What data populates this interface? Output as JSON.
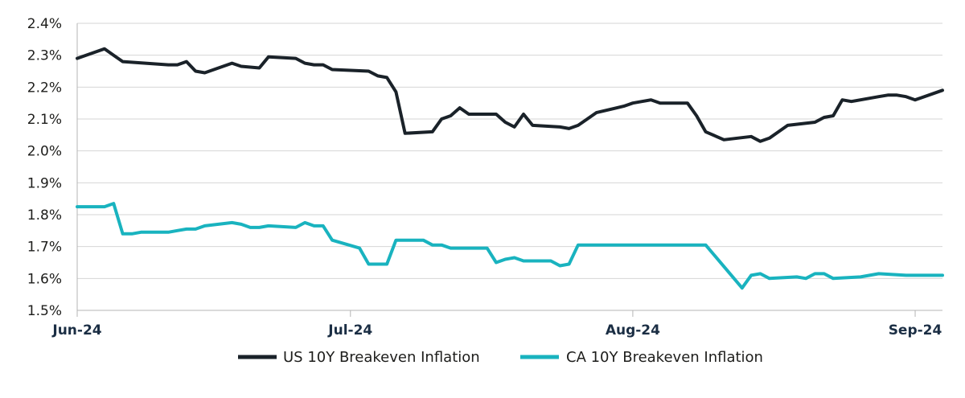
{
  "chart_data": {
    "type": "line",
    "title": "",
    "xlabel": "",
    "ylabel": "",
    "ylim": [
      1.5,
      2.4
    ],
    "yticks": [
      "2.4%",
      "2.3%",
      "2.2%",
      "2.1%",
      "2.0%",
      "1.9%",
      "1.8%",
      "1.7%",
      "1.6%",
      "1.5%"
    ],
    "ytick_values": [
      2.4,
      2.3,
      2.2,
      2.1,
      2.0,
      1.9,
      1.8,
      1.7,
      1.6,
      1.5
    ],
    "xticks": [
      "Jun-24",
      "Jul-24",
      "Aug-24",
      "Sep-24"
    ],
    "xtick_values": [
      "2024-06-01",
      "2024-07-01",
      "2024-08-01",
      "2024-09-01"
    ],
    "xlim": [
      "2024-06-01",
      "2024-09-04"
    ],
    "grid": true,
    "legend_position": "bottom",
    "series": [
      {
        "name": "US 10Y Breakeven Inflation",
        "color": "#1a2229",
        "points": [
          [
            "2024-06-01",
            2.29
          ],
          [
            "2024-06-04",
            2.32
          ],
          [
            "2024-06-05",
            2.3
          ],
          [
            "2024-06-06",
            2.28
          ],
          [
            "2024-06-11",
            2.27
          ],
          [
            "2024-06-12",
            2.27
          ],
          [
            "2024-06-13",
            2.28
          ],
          [
            "2024-06-14",
            2.25
          ],
          [
            "2024-06-15",
            2.245
          ],
          [
            "2024-06-18",
            2.275
          ],
          [
            "2024-06-19",
            2.265
          ],
          [
            "2024-06-21",
            2.26
          ],
          [
            "2024-06-22",
            2.295
          ],
          [
            "2024-06-25",
            2.29
          ],
          [
            "2024-06-26",
            2.275
          ],
          [
            "2024-06-27",
            2.27
          ],
          [
            "2024-06-28",
            2.27
          ],
          [
            "2024-06-29",
            2.255
          ],
          [
            "2024-07-03",
            2.25
          ],
          [
            "2024-07-04",
            2.235
          ],
          [
            "2024-07-05",
            2.23
          ],
          [
            "2024-07-06",
            2.185
          ],
          [
            "2024-07-07",
            2.055
          ],
          [
            "2024-07-10",
            2.06
          ],
          [
            "2024-07-11",
            2.1
          ],
          [
            "2024-07-12",
            2.11
          ],
          [
            "2024-07-13",
            2.135
          ],
          [
            "2024-07-14",
            2.115
          ],
          [
            "2024-07-17",
            2.115
          ],
          [
            "2024-07-18",
            2.09
          ],
          [
            "2024-07-19",
            2.075
          ],
          [
            "2024-07-20",
            2.115
          ],
          [
            "2024-07-21",
            2.08
          ],
          [
            "2024-07-24",
            2.075
          ],
          [
            "2024-07-25",
            2.07
          ],
          [
            "2024-07-26",
            2.08
          ],
          [
            "2024-07-27",
            2.1
          ],
          [
            "2024-07-28",
            2.12
          ],
          [
            "2024-07-31",
            2.14
          ],
          [
            "2024-08-01",
            2.15
          ],
          [
            "2024-08-02",
            2.155
          ],
          [
            "2024-08-03",
            2.16
          ],
          [
            "2024-08-04",
            2.15
          ],
          [
            "2024-08-07",
            2.15
          ],
          [
            "2024-08-08",
            2.11
          ],
          [
            "2024-08-09",
            2.06
          ],
          [
            "2024-08-11",
            2.035
          ],
          [
            "2024-08-14",
            2.045
          ],
          [
            "2024-08-15",
            2.03
          ],
          [
            "2024-08-16",
            2.04
          ],
          [
            "2024-08-17",
            2.06
          ],
          [
            "2024-08-18",
            2.08
          ],
          [
            "2024-08-21",
            2.09
          ],
          [
            "2024-08-22",
            2.105
          ],
          [
            "2024-08-23",
            2.11
          ],
          [
            "2024-08-24",
            2.16
          ],
          [
            "2024-08-25",
            2.155
          ],
          [
            "2024-08-28",
            2.17
          ],
          [
            "2024-08-29",
            2.175
          ],
          [
            "2024-08-30",
            2.175
          ],
          [
            "2024-08-31",
            2.17
          ],
          [
            "2024-09-01",
            2.16
          ],
          [
            "2024-09-04",
            2.19
          ]
        ]
      },
      {
        "name": "CA 10Y Breakeven Inflation",
        "color": "#19b3bf",
        "points": [
          [
            "2024-06-01",
            1.825
          ],
          [
            "2024-06-04",
            1.825
          ],
          [
            "2024-06-05",
            1.835
          ],
          [
            "2024-06-06",
            1.74
          ],
          [
            "2024-06-07",
            1.74
          ],
          [
            "2024-06-08",
            1.745
          ],
          [
            "2024-06-11",
            1.745
          ],
          [
            "2024-06-12",
            1.75
          ],
          [
            "2024-06-13",
            1.755
          ],
          [
            "2024-06-14",
            1.755
          ],
          [
            "2024-06-15",
            1.765
          ],
          [
            "2024-06-18",
            1.775
          ],
          [
            "2024-06-19",
            1.77
          ],
          [
            "2024-06-20",
            1.76
          ],
          [
            "2024-06-21",
            1.76
          ],
          [
            "2024-06-22",
            1.765
          ],
          [
            "2024-06-25",
            1.76
          ],
          [
            "2024-06-26",
            1.775
          ],
          [
            "2024-06-27",
            1.765
          ],
          [
            "2024-06-28",
            1.765
          ],
          [
            "2024-06-29",
            1.72
          ],
          [
            "2024-07-02",
            1.695
          ],
          [
            "2024-07-03",
            1.645
          ],
          [
            "2024-07-05",
            1.645
          ],
          [
            "2024-07-06",
            1.72
          ],
          [
            "2024-07-09",
            1.72
          ],
          [
            "2024-07-10",
            1.705
          ],
          [
            "2024-07-11",
            1.705
          ],
          [
            "2024-07-12",
            1.695
          ],
          [
            "2024-07-16",
            1.695
          ],
          [
            "2024-07-17",
            1.65
          ],
          [
            "2024-07-18",
            1.66
          ],
          [
            "2024-07-19",
            1.665
          ],
          [
            "2024-07-20",
            1.655
          ],
          [
            "2024-07-23",
            1.655
          ],
          [
            "2024-07-24",
            1.64
          ],
          [
            "2024-07-25",
            1.645
          ],
          [
            "2024-07-26",
            1.705
          ],
          [
            "2024-08-09",
            1.705
          ],
          [
            "2024-08-13",
            1.57
          ],
          [
            "2024-08-14",
            1.61
          ],
          [
            "2024-08-15",
            1.615
          ],
          [
            "2024-08-16",
            1.6
          ],
          [
            "2024-08-19",
            1.605
          ],
          [
            "2024-08-20",
            1.6
          ],
          [
            "2024-08-21",
            1.615
          ],
          [
            "2024-08-22",
            1.615
          ],
          [
            "2024-08-23",
            1.6
          ],
          [
            "2024-08-26",
            1.605
          ],
          [
            "2024-08-27",
            1.61
          ],
          [
            "2024-08-28",
            1.615
          ],
          [
            "2024-08-31",
            1.61
          ],
          [
            "2024-09-01",
            1.61
          ],
          [
            "2024-09-04",
            1.61
          ]
        ]
      }
    ]
  }
}
